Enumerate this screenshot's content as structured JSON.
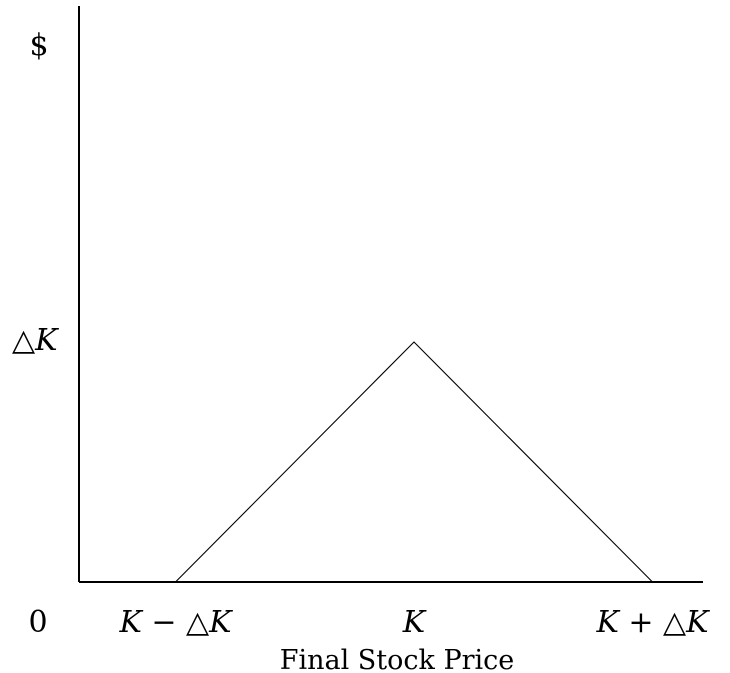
{
  "chart_data": {
    "type": "line",
    "title": "",
    "xlabel": "Final Stock Price",
    "ylabel": "$",
    "x_origin_label": "0",
    "x_ticks": [
      {
        "value": -1,
        "label": "K − △K"
      },
      {
        "value": 0,
        "label": "K"
      },
      {
        "value": 1,
        "label": "K + △K"
      }
    ],
    "y_ticks": [
      {
        "value": 1,
        "label": "△K"
      }
    ],
    "series": [
      {
        "points": [
          {
            "x": -1,
            "y": 0
          },
          {
            "x": 0,
            "y": 1
          },
          {
            "x": 1,
            "y": 0
          }
        ]
      }
    ],
    "grid": false
  }
}
